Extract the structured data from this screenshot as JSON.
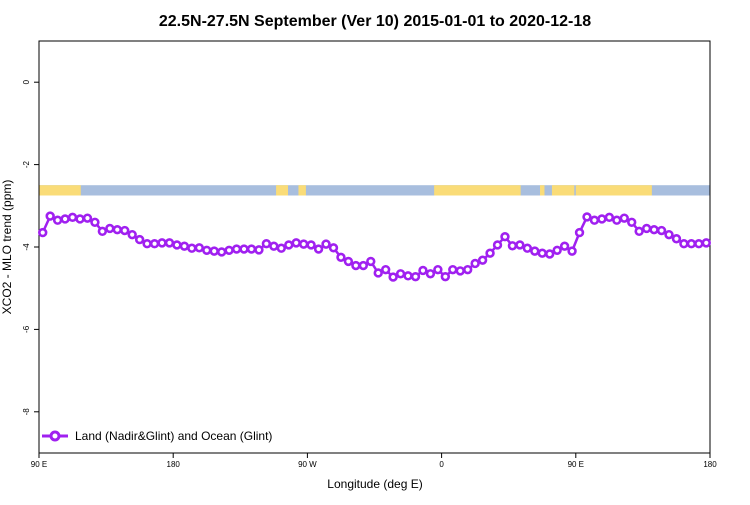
{
  "chart_data": {
    "type": "line",
    "title": "22.5N-27.5N September (Ver 10)   2015-01-01 to 2020-12-18",
    "xlabel": "Longitude (deg E)",
    "ylabel": "XCO2 - MLO trend (ppm)",
    "xlim": [
      90,
      540
    ],
    "ylim": [
      -9,
      1
    ],
    "x_ticks": [
      {
        "value": 90,
        "label": "90 E"
      },
      {
        "value": 180,
        "label": "180"
      },
      {
        "value": 270,
        "label": "90 W"
      },
      {
        "value": 360,
        "label": "0"
      },
      {
        "value": 450,
        "label": "90 E"
      },
      {
        "value": 540,
        "label": "180"
      }
    ],
    "y_ticks": [
      {
        "value": 0,
        "label": "0"
      },
      {
        "value": -2,
        "label": "-2"
      },
      {
        "value": -4,
        "label": "-4"
      },
      {
        "value": -6,
        "label": "-6"
      },
      {
        "value": -8,
        "label": "-8"
      }
    ],
    "grid": false,
    "legend_position": "bottom-left",
    "map_strip": {
      "y_range": [
        -2.75,
        -2.5
      ],
      "ocean_color": "#a8bede",
      "land_color": "#fadc78",
      "land_segments": [
        [
          90,
          118
        ],
        [
          249,
          257
        ],
        [
          264,
          269
        ],
        [
          355,
          413
        ],
        [
          426,
          429
        ],
        [
          434,
          449
        ],
        [
          450,
          501
        ]
      ]
    },
    "series": [
      {
        "name": "Land (Nadir&Glint) and Ocean (Glint)",
        "color": "#a020f0",
        "x": [
          92.5,
          97.5,
          102.5,
          107.5,
          112.5,
          117.5,
          122.5,
          127.5,
          132.5,
          137.5,
          142.5,
          147.5,
          152.5,
          157.5,
          162.5,
          167.5,
          172.5,
          177.5,
          182.5,
          187.5,
          192.5,
          197.5,
          202.5,
          207.5,
          212.5,
          217.5,
          222.5,
          227.5,
          232.5,
          237.5,
          242.5,
          247.5,
          252.5,
          257.5,
          262.5,
          267.5,
          272.5,
          277.5,
          282.5,
          287.5,
          292.5,
          297.5,
          302.5,
          307.5,
          312.5,
          317.5,
          322.5,
          327.5,
          332.5,
          337.5,
          342.5,
          347.5,
          352.5,
          357.5,
          362.5,
          367.5,
          372.5,
          377.5,
          382.5,
          387.5,
          392.5,
          397.5,
          402.5,
          407.5,
          412.5,
          417.5,
          422.5,
          427.5,
          432.5,
          437.5,
          442.5,
          447.5,
          452.5,
          457.5,
          462.5,
          467.5,
          472.5,
          477.5,
          482.5,
          487.5,
          492.5,
          497.5,
          502.5,
          507.5,
          512.5,
          517.5,
          522.5,
          527.5,
          532.5,
          537.5
        ],
        "y": [
          -3.65,
          -3.25,
          -3.35,
          -3.32,
          -3.28,
          -3.32,
          -3.3,
          -3.4,
          -3.62,
          -3.55,
          -3.58,
          -3.6,
          -3.7,
          -3.82,
          -3.92,
          -3.92,
          -3.9,
          -3.9,
          -3.95,
          -3.98,
          -4.03,
          -4.02,
          -4.08,
          -4.1,
          -4.12,
          -4.08,
          -4.05,
          -4.05,
          -4.05,
          -4.07,
          -3.92,
          -3.98,
          -4.03,
          -3.95,
          -3.9,
          -3.93,
          -3.95,
          -4.05,
          -3.93,
          -4.02,
          -4.25,
          -4.35,
          -4.45,
          -4.45,
          -4.35,
          -4.63,
          -4.55,
          -4.73,
          -4.65,
          -4.7,
          -4.72,
          -4.57,
          -4.65,
          -4.55,
          -4.72,
          -4.55,
          -4.58,
          -4.55,
          -4.4,
          -4.32,
          -4.15,
          -3.95,
          -3.75,
          -3.97,
          -3.95,
          -4.03,
          -4.1,
          -4.15,
          -4.17,
          -4.08,
          -3.98,
          -4.1,
          -3.65,
          -3.27,
          -3.35,
          -3.32,
          -3.28,
          -3.35,
          -3.3,
          -3.4,
          -3.62,
          -3.55,
          -3.58,
          -3.6,
          -3.7,
          -3.8,
          -3.92,
          -3.92,
          -3.92,
          -3.9
        ]
      }
    ]
  }
}
